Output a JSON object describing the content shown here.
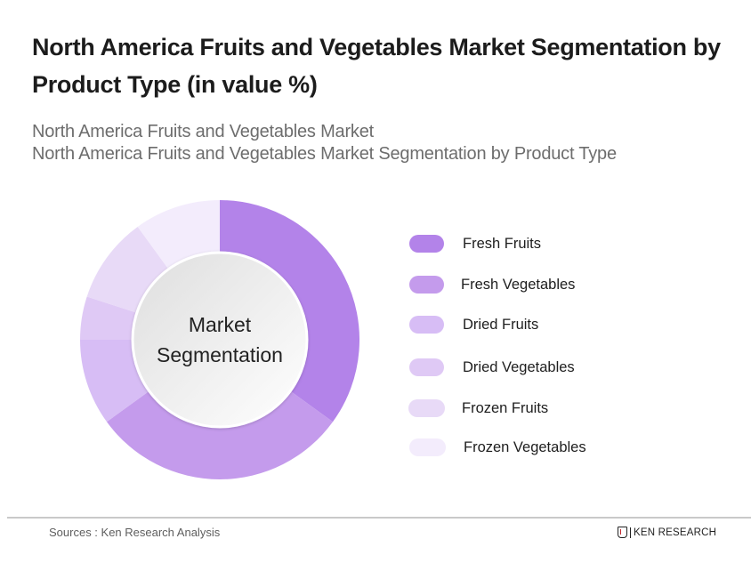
{
  "header": {
    "title": "North America Fruits and Vegetables Market Segmentation by Product Type (in value %)",
    "subtitle_line1": "North America Fruits and Vegetables Market",
    "subtitle_line2": "North America Fruits and Vegetables Market Segmentation by Product Type"
  },
  "donut": {
    "center_line1": "Market",
    "center_line2": "Segmentation"
  },
  "legend": {
    "items": [
      {
        "label": "Fresh Fruits",
        "color": "#B383E9"
      },
      {
        "label": "Fresh Vegetables",
        "color": "#C49BEC"
      },
      {
        "label": "Dried Fruits",
        "color": "#D7BDF5"
      },
      {
        "label": "Dried Vegetables",
        "color": "#DFC9F5"
      },
      {
        "label": "Frozen Fruits",
        "color": "#E8DAF7"
      },
      {
        "label": "Frozen Vegetables",
        "color": "#F3ECFC"
      }
    ]
  },
  "footer": {
    "source": "Sources : Ken Research Analysis",
    "brand": "KEN RESEARCH"
  },
  "chart_data": {
    "type": "pie",
    "subtype": "donut",
    "title": "North America Fruits and Vegetables Market Segmentation by Product Type (in value %)",
    "subtitle": "North America Fruits and Vegetables Market Segmentation by Product Type",
    "center_text": "Market Segmentation",
    "categories": [
      "Fresh Fruits",
      "Fresh Vegetables",
      "Dried Fruits",
      "Dried Vegetables",
      "Frozen Fruits",
      "Frozen Vegetables"
    ],
    "values": [
      35,
      30,
      10,
      5,
      10,
      10
    ],
    "colors": [
      "#B383E9",
      "#C49BEC",
      "#D7BDF5",
      "#DFC9F5",
      "#E8DAF7",
      "#F3ECFC"
    ],
    "unit": "%",
    "start_angle": "12 o'clock, clockwise",
    "data_labels_shown": false,
    "legend_position": "right"
  }
}
